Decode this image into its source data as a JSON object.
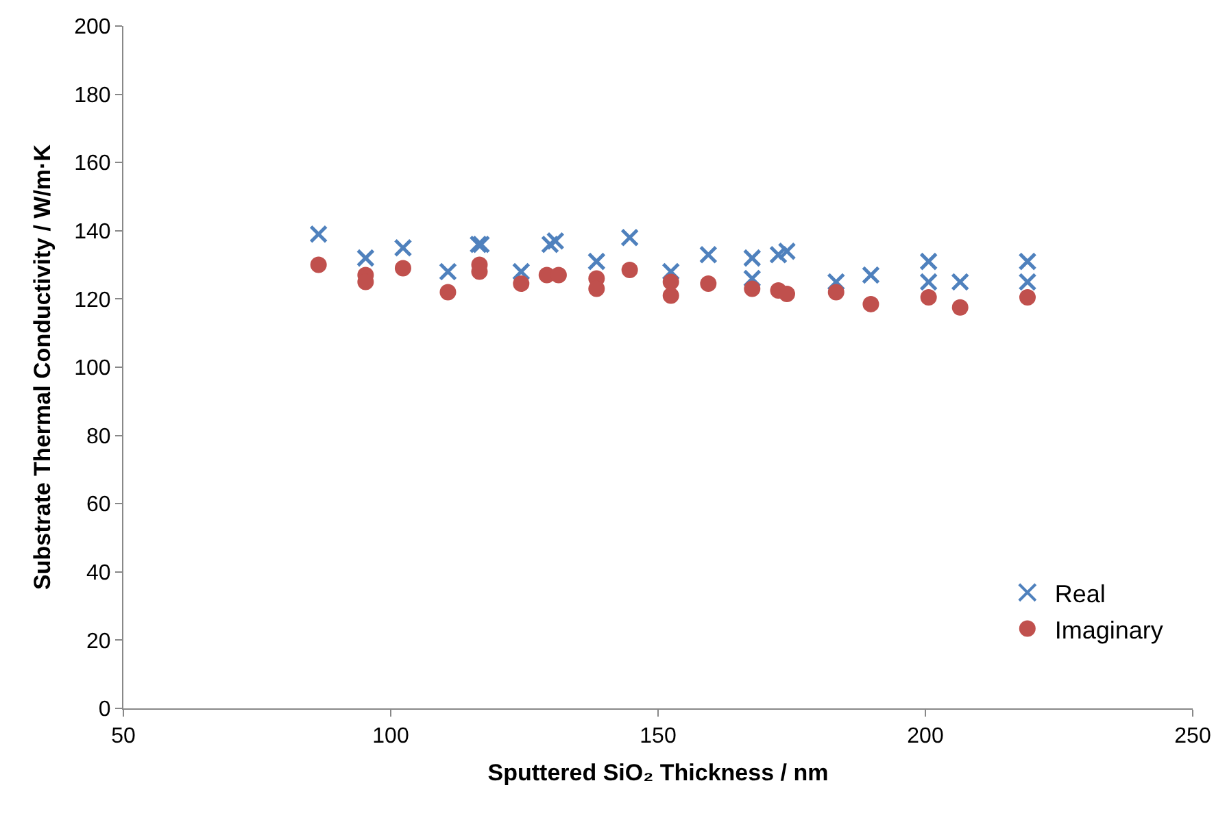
{
  "chart_data": {
    "type": "scatter",
    "xlabel": "Sputtered SiO₂ Thickness / nm",
    "ylabel": "Substrate Thermal Conductivity / W/m·K",
    "xlim": [
      50,
      250
    ],
    "xticks": [
      50,
      100,
      150,
      200,
      250
    ],
    "ylim": [
      0,
      200
    ],
    "yticks": [
      0,
      20,
      40,
      60,
      80,
      100,
      120,
      140,
      160,
      180,
      200
    ],
    "grid": false,
    "legend": "bottom right",
    "series": [
      {
        "name": "Real",
        "color": "#4f81bd",
        "marker": "cross",
        "x": [
          86.5,
          95.3,
          102.3,
          110.7,
          116.4,
          116.9,
          124.4,
          129.8,
          130.8,
          138.5,
          144.7,
          152.4,
          159.4,
          167.6,
          167.6,
          172.5,
          174.1,
          183.3,
          189.8,
          200.6,
          200.6,
          206.5,
          219.1,
          219.1
        ],
        "values": [
          139,
          132,
          135,
          128,
          136,
          136,
          128,
          136,
          137,
          131,
          138,
          128,
          133,
          132,
          126,
          133,
          134,
          125,
          127,
          131,
          125,
          125,
          131,
          125
        ]
      },
      {
        "name": "Imaginary",
        "color": "#c0504d",
        "marker": "circle",
        "x": [
          86.5,
          95.3,
          95.3,
          102.3,
          110.7,
          116.6,
          116.6,
          124.4,
          129.2,
          131.4,
          138.5,
          138.5,
          144.7,
          152.4,
          152.4,
          159.4,
          167.6,
          172.5,
          174.1,
          183.3,
          189.8,
          200.6,
          206.5,
          219.1
        ],
        "values": [
          130,
          127,
          125,
          129,
          122,
          130,
          128,
          124.5,
          127,
          127,
          126,
          123,
          128.5,
          125,
          121,
          124.5,
          123,
          122.5,
          121.5,
          122,
          118.5,
          120.5,
          117.5,
          120.5
        ]
      }
    ]
  }
}
